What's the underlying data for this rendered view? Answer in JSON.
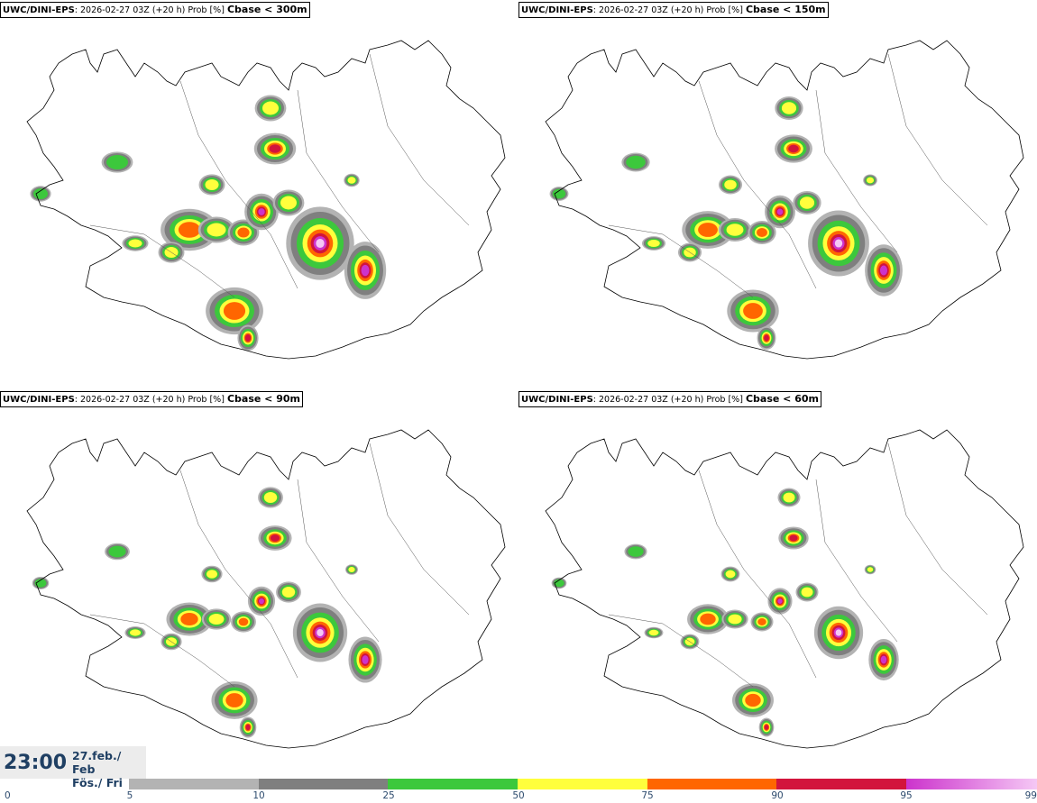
{
  "panels": [
    {
      "model": "UWC/DINI-EPS",
      "run_info": ": 2026-02-27 03Z (+20 h) Prob [%]",
      "variable": "Cbase < 300m"
    },
    {
      "model": "UWC/DINI-EPS",
      "run_info": ": 2026-02-27 03Z (+20 h) Prob [%]",
      "variable": "Cbase < 150m"
    },
    {
      "model": "UWC/DINI-EPS",
      "run_info": ": 2026-02-27 03Z (+20 h) Prob [%]",
      "variable": "Cbase < 90m"
    },
    {
      "model": "UWC/DINI-EPS",
      "run_info": ": 2026-02-27 03Z (+20 h) Prob [%]",
      "variable": "Cbase < 60m"
    }
  ],
  "valid_time": {
    "clock": "23:00",
    "date_line1": "27.feb./ Feb",
    "date_line2": "Fös./ Fri"
  },
  "colorbar": {
    "tick_labels": [
      "0",
      "5",
      "10",
      "25",
      "50",
      "75",
      "90",
      "95",
      "99"
    ],
    "colors": [
      "#ffffff",
      "#b3b3b3",
      "#7f7f7f",
      "#3cc83c",
      "#ffff3c",
      "#ff6600",
      "#d2143c",
      "#cc33cc",
      "#f5c8f5"
    ]
  }
}
